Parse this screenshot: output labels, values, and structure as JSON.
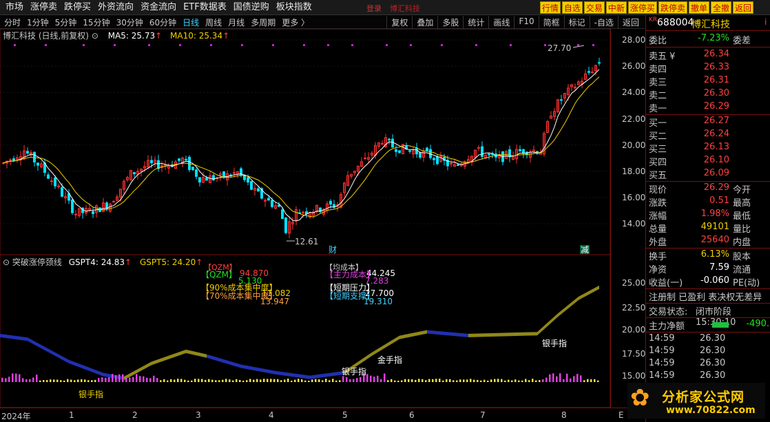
{
  "topnav": {
    "menu": [
      "市场",
      "涨停卖",
      "跌停买",
      "外资流向",
      "资金流向",
      "ETF数据表",
      "国债逆购",
      "板块指数"
    ],
    "login": "登录",
    "stock_link": "博汇科技",
    "buttons": [
      "行情",
      "自选",
      "交易",
      "中新",
      "涨停买",
      "跌停卖",
      "撤单",
      "全撤",
      "返回"
    ]
  },
  "toolbar": {
    "periods": [
      "分时",
      "1分钟",
      "5分钟",
      "15分钟",
      "30分钟",
      "60分钟",
      "日线",
      "周线",
      "月线",
      "多周期",
      "更多 〉"
    ],
    "active_period": "日线",
    "tools": [
      "复权",
      "叠加",
      "多股",
      "统计",
      "画线",
      "F10",
      "简框",
      "标记",
      "-自选",
      "返回"
    ]
  },
  "main_chart": {
    "stock_label": "博汇科技 (日线,前复权)",
    "ma5_label": "MA5: 25.73",
    "ma10_label": "MA10: 25.34",
    "up_arrow": "↑",
    "high_label": "27.70",
    "low_label": "12.61",
    "event_cai": "财",
    "event_jian": "减",
    "colors": {
      "up": "#ff3030",
      "down": "#00e0ff",
      "ma5": "#ffffff",
      "ma10": "#f0d000"
    }
  },
  "axis": {
    "price_ticks": [
      "28.00",
      "26.00",
      "24.00",
      "22.00",
      "20.00",
      "18.00",
      "16.00",
      "14.00"
    ],
    "sub_ticks": [
      "25.00",
      "22.50",
      "20.00",
      "17.50",
      "15.00"
    ],
    "x_ticks": [
      "2024年",
      "1",
      "2",
      "3",
      "4",
      "5",
      "6",
      "7",
      "8"
    ],
    "x_end": "E"
  },
  "sub_chart": {
    "title": "突破涨停颈线",
    "gspt4": "GSPT4: 24.83",
    "gspt5": "GSPT5: 24.20",
    "up_arrow": "↑",
    "box_qzm": "QZM",
    "box_qzm_top": "QZM",
    "val_94870": "94.870",
    "val_5130": "5.130",
    "box_90": "90%成本集中度",
    "box_70": "70%成本集中度",
    "val_11082": "11.082",
    "val_13947": "13.947",
    "val_44245": "44.245",
    "box_main_top": "均成本",
    "box_main": "主力成本",
    "val_7283": "7.283",
    "box_press": "短期压力",
    "box_support": "短期支撑",
    "val_27700": "27.700",
    "val_19310": "19.310",
    "label_yin1": "银手指",
    "label_yin2": "银手指",
    "label_jin": "金手指",
    "label_yin3": "银手指"
  },
  "quote": {
    "kr": "KR",
    "code": "688004",
    "name": "博汇科技",
    "i_mark": "i",
    "weibi_label": "委比",
    "weibi_val": "-7.23%",
    "weicha_label": "委差",
    "asks": [
      {
        "label": "卖五 ¥",
        "price": "26.34"
      },
      {
        "label": "卖四",
        "price": "26.33"
      },
      {
        "label": "卖三",
        "price": "26.31"
      },
      {
        "label": "卖二",
        "price": "26.30"
      },
      {
        "label": "卖一",
        "price": "26.29"
      }
    ],
    "bids": [
      {
        "label": "买一",
        "price": "26.27"
      },
      {
        "label": "买二",
        "price": "26.24"
      },
      {
        "label": "买三",
        "price": "26.13"
      },
      {
        "label": "买四",
        "price": "26.10"
      },
      {
        "label": "买五",
        "price": "26.09"
      }
    ],
    "stats": [
      {
        "label": "现价",
        "val": "26.29",
        "right": "今开"
      },
      {
        "label": "涨跌",
        "val": "0.51",
        "right": "最高"
      },
      {
        "label": "涨幅",
        "val": "1.98%",
        "right": "最低"
      },
      {
        "label": "总量",
        "val": "49101",
        "right": "量比"
      },
      {
        "label": "外盘",
        "val": "25640",
        "right": "内盘"
      }
    ],
    "stats2": [
      {
        "label": "换手",
        "val": "6.13%",
        "right": "股本"
      },
      {
        "label": "净资",
        "val": "7.59",
        "right": "流通"
      },
      {
        "label": "收益(一)",
        "val": "-0.060",
        "right": "PE(动)"
      }
    ],
    "tags": "注册制 已盈利 表决权无差异",
    "status_label": "交易状态:",
    "status_val": "闭市阶段 15:30:10",
    "netflow_label": "主力净额",
    "netflow_val": "-490.",
    "ticks": [
      {
        "time": "14:59",
        "price": "26.30"
      },
      {
        "time": "14:59",
        "price": "26.30"
      },
      {
        "time": "14:59",
        "price": "26.30"
      },
      {
        "time": "14:59",
        "price": "26.30"
      }
    ]
  },
  "logo": {
    "title": "分析家公式网",
    "url": "www.70822.com"
  }
}
